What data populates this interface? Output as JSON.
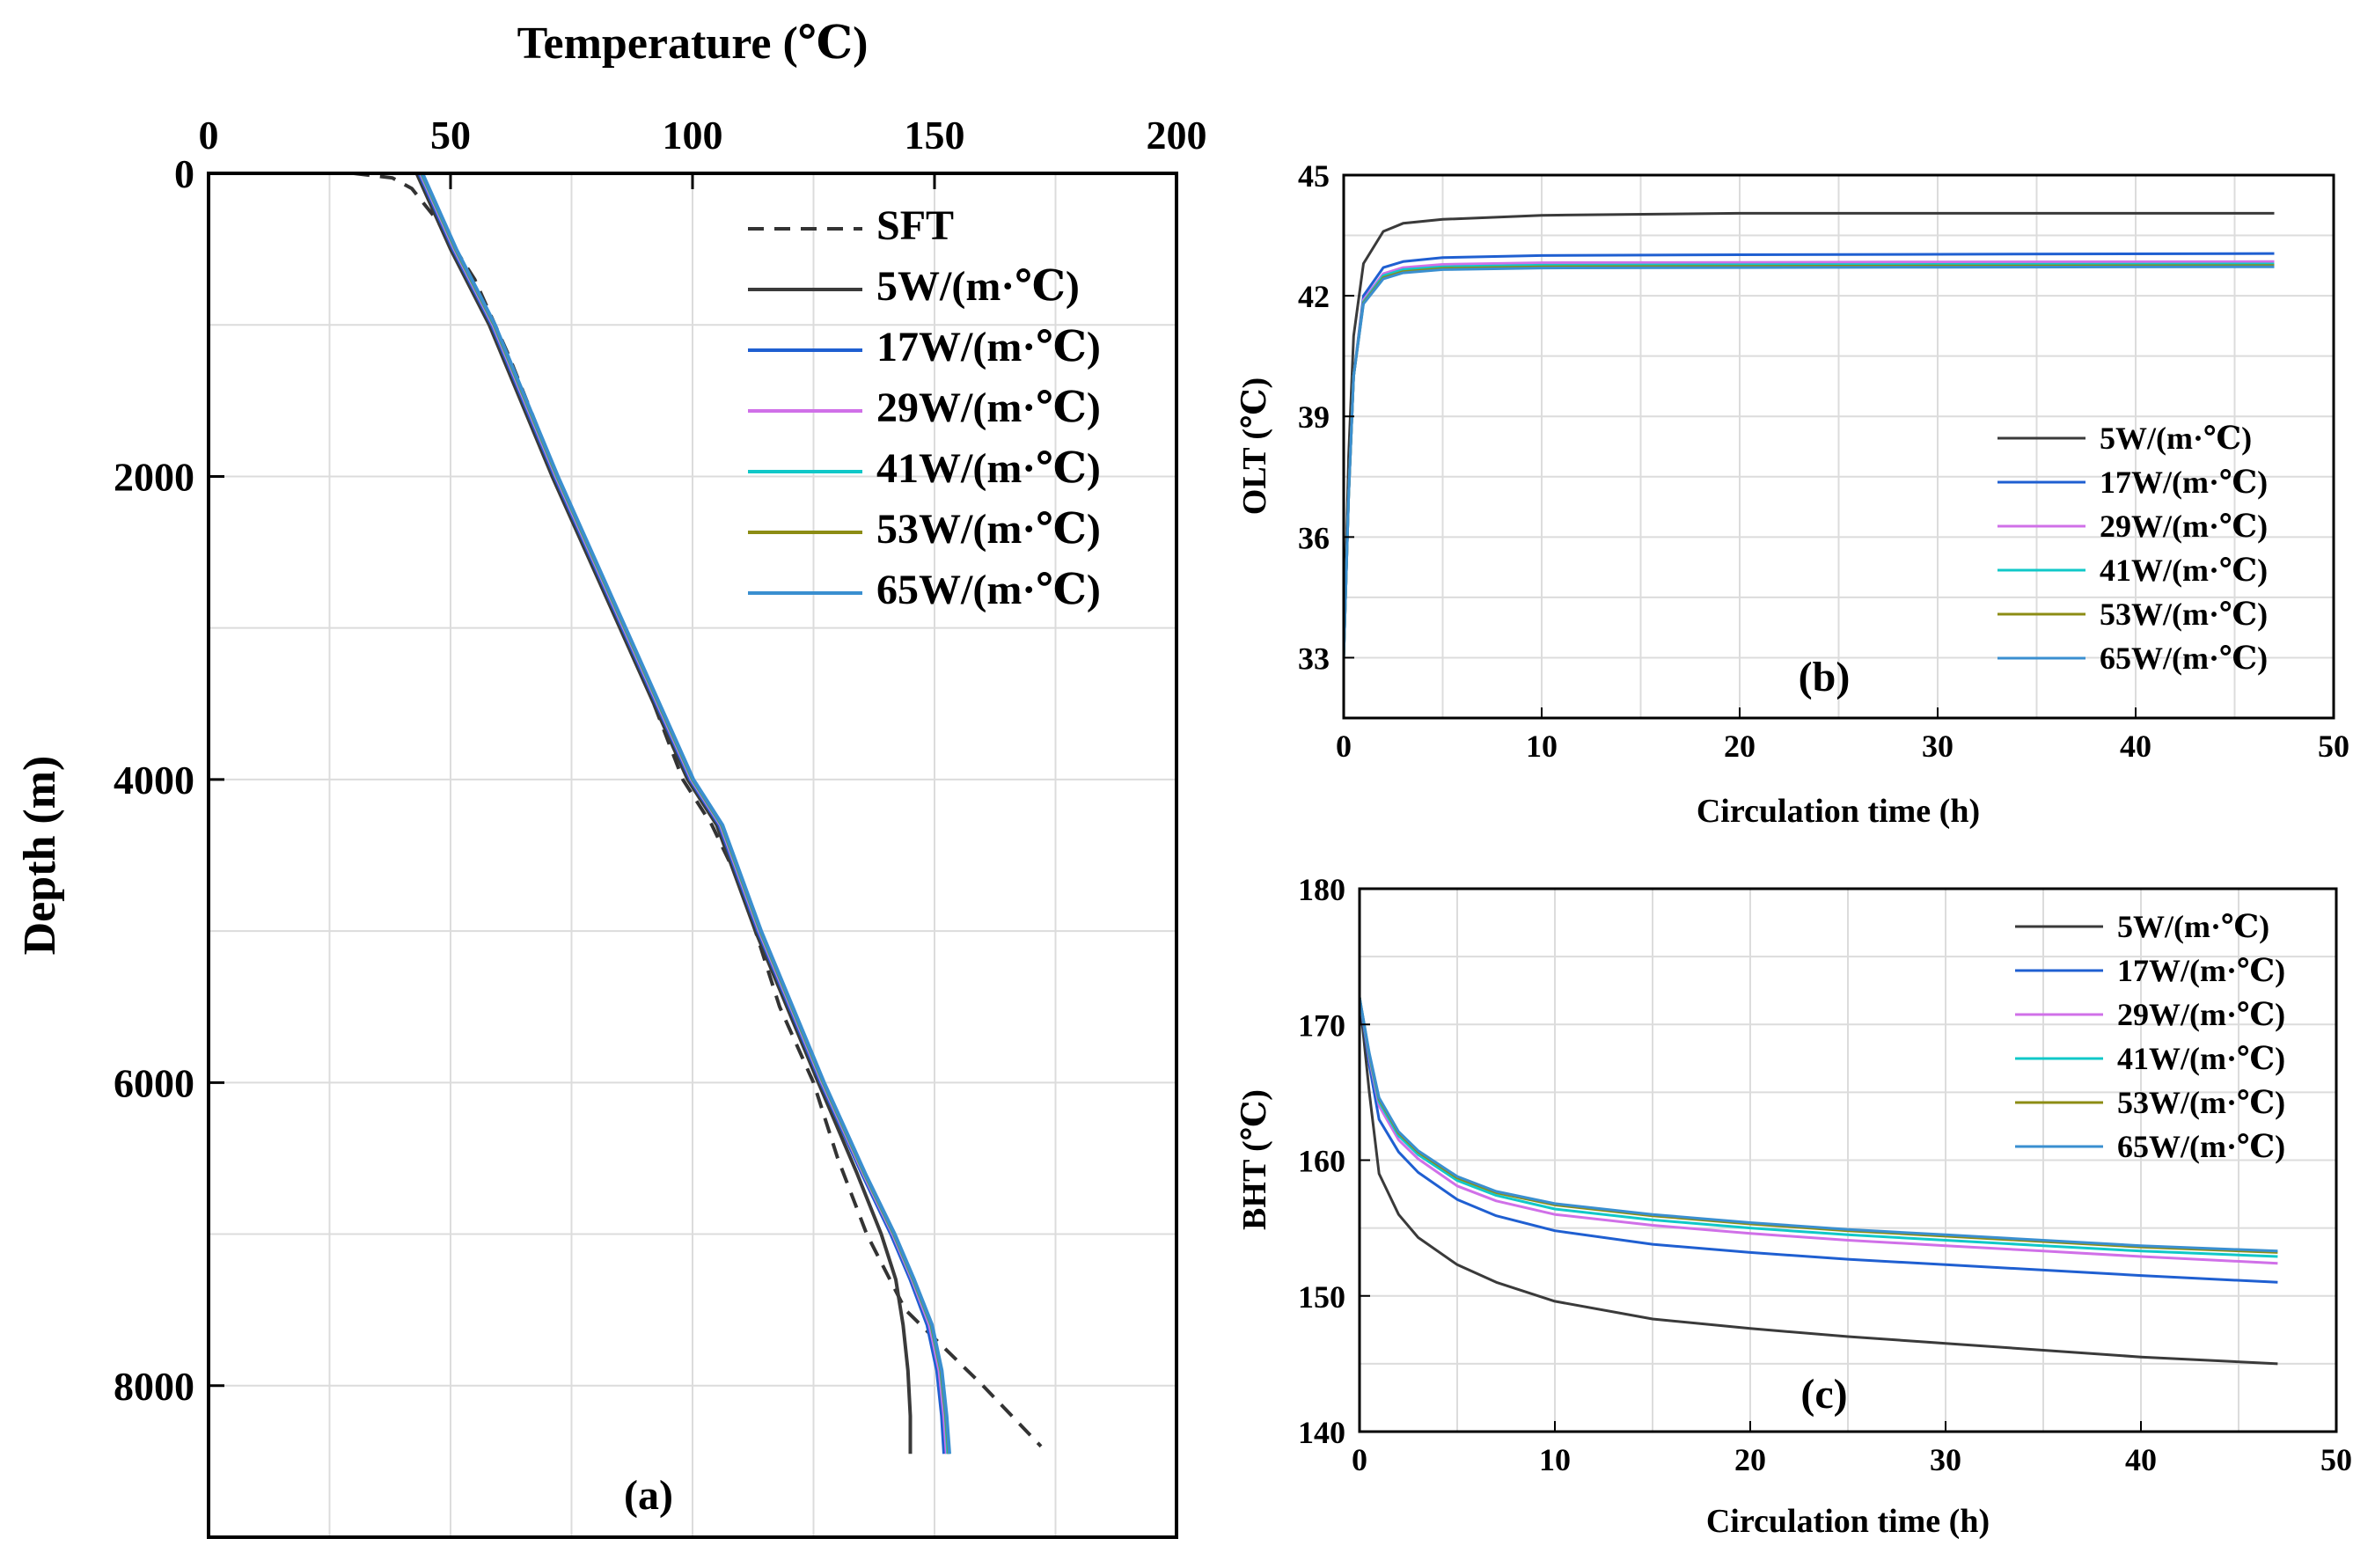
{
  "colors": {
    "SFT": "#333333",
    "k5": "#3a3a3a",
    "k17": "#1f5fd1",
    "k29": "#d070e8",
    "k41": "#10c8c8",
    "k53": "#8c8c14",
    "k65": "#3a8fd0",
    "grid": "#dcdcdc"
  },
  "chart_data": [
    {
      "panel": "(a)",
      "type": "line",
      "xlabel": "Temperature (℃)",
      "ylabel": "Depth (m)",
      "xlim": [
        0,
        200
      ],
      "ylim": [
        9000,
        0
      ],
      "xticks": [
        "0",
        "50",
        "100",
        "150",
        "200"
      ],
      "yticks": [
        "0",
        "2000",
        "4000",
        "6000",
        "8000"
      ],
      "series": [
        {
          "name": "SFT",
          "key": "SFT",
          "dashed": true,
          "y": [
            0,
            30,
            100,
            300,
            700,
            1200,
            2000,
            3000,
            4000,
            4300,
            4700,
            5500,
            6000,
            6500,
            7000,
            7500,
            8000,
            8400
          ],
          "x": [
            30,
            38,
            42,
            47,
            55,
            62,
            72,
            86,
            98,
            104,
            110,
            118,
            125,
            130,
            136,
            144,
            160,
            172
          ]
        },
        {
          "name": "5W/(m·℃)",
          "key": "k5",
          "dashed": false,
          "y": [
            0,
            500,
            1000,
            2000,
            3000,
            4000,
            4300,
            5000,
            6000,
            6600,
            7000,
            7300,
            7600,
            7900,
            8200,
            8450
          ],
          "x": [
            43,
            50,
            58,
            71,
            85,
            99,
            105,
            113,
            126,
            134,
            139,
            142,
            143.5,
            144.5,
            145,
            145
          ]
        },
        {
          "name": "17W/(m·℃)",
          "key": "k17",
          "dashed": false,
          "y": [
            0,
            500,
            1000,
            2000,
            3000,
            4000,
            4300,
            5000,
            6000,
            6600,
            7000,
            7300,
            7600,
            7900,
            8200,
            8450
          ],
          "x": [
            43.5,
            50.5,
            58.5,
            71.5,
            85.5,
            99.5,
            105.5,
            113.5,
            126.5,
            135,
            141,
            145,
            148.5,
            150.5,
            151.5,
            152
          ]
        },
        {
          "name": "29W/(m·℃)",
          "key": "k29",
          "dashed": false,
          "y": [
            0,
            500,
            1000,
            2000,
            3000,
            4000,
            4300,
            5000,
            6000,
            6600,
            7000,
            7300,
            7600,
            7900,
            8200,
            8450
          ],
          "x": [
            43.8,
            50.8,
            58.8,
            71.8,
            85.8,
            99.8,
            105.8,
            113.8,
            126.8,
            135.3,
            141.4,
            145.4,
            149,
            151,
            152,
            152.5
          ]
        },
        {
          "name": "41W/(m·℃)",
          "key": "k41",
          "dashed": false,
          "y": [
            0,
            500,
            1000,
            2000,
            3000,
            4000,
            4300,
            5000,
            6000,
            6600,
            7000,
            7300,
            7600,
            7900,
            8200,
            8450
          ],
          "x": [
            44,
            51,
            59,
            72,
            86,
            100,
            106,
            114,
            127,
            135.5,
            141.6,
            145.6,
            149.3,
            151.3,
            152.3,
            152.8
          ]
        },
        {
          "name": "53W/(m·℃)",
          "key": "k53",
          "dashed": false,
          "y": [
            0,
            500,
            1000,
            2000,
            3000,
            4000,
            4300,
            5000,
            6000,
            6600,
            7000,
            7300,
            7600,
            7900,
            8200,
            8450
          ],
          "x": [
            44.1,
            51.1,
            59.1,
            72.1,
            86.1,
            100.1,
            106.1,
            114.1,
            127.1,
            135.6,
            141.7,
            145.7,
            149.4,
            151.4,
            152.4,
            153
          ]
        },
        {
          "name": "65W/(m·℃)",
          "key": "k65",
          "dashed": false,
          "y": [
            0,
            500,
            1000,
            2000,
            3000,
            4000,
            4300,
            5000,
            6000,
            6600,
            7000,
            7300,
            7600,
            7900,
            8200,
            8450
          ],
          "x": [
            44.2,
            51.2,
            59.2,
            72.2,
            86.2,
            100.2,
            106.2,
            114.2,
            127.2,
            135.7,
            141.8,
            145.8,
            149.5,
            151.5,
            152.5,
            153.1
          ]
        }
      ]
    },
    {
      "panel": "(b)",
      "type": "line",
      "xlabel": "Circulation time (h)",
      "ylabel": "OLT (℃)",
      "xlim": [
        0,
        50
      ],
      "ylim": [
        31.5,
        45
      ],
      "xticks": [
        "0",
        "10",
        "20",
        "30",
        "40",
        "50"
      ],
      "yticks": [
        "33",
        "36",
        "39",
        "42",
        "45"
      ],
      "series": [
        {
          "name": "5W/(m·℃)",
          "key": "k5",
          "x": [
            0,
            0.25,
            0.5,
            1,
            2,
            3,
            5,
            10,
            20,
            30,
            47
          ],
          "y": [
            33,
            38,
            41,
            42.8,
            43.6,
            43.8,
            43.9,
            44.0,
            44.05,
            44.05,
            44.05
          ]
        },
        {
          "name": "17W/(m·℃)",
          "key": "k17",
          "x": [
            0,
            0.25,
            0.5,
            1,
            2,
            3,
            5,
            10,
            20,
            30,
            47
          ],
          "y": [
            33,
            37,
            40,
            42.0,
            42.7,
            42.85,
            42.95,
            43.0,
            43.02,
            43.03,
            43.05
          ]
        },
        {
          "name": "29W/(m·℃)",
          "key": "k29",
          "x": [
            0,
            0.25,
            0.5,
            1,
            2,
            3,
            5,
            10,
            20,
            30,
            47
          ],
          "y": [
            33,
            37,
            40,
            41.9,
            42.55,
            42.7,
            42.78,
            42.82,
            42.83,
            42.84,
            42.85
          ]
        },
        {
          "name": "41W/(m·℃)",
          "key": "k41",
          "x": [
            0,
            0.25,
            0.5,
            1,
            2,
            3,
            5,
            10,
            20,
            30,
            47
          ],
          "y": [
            33,
            37,
            40,
            41.85,
            42.5,
            42.65,
            42.72,
            42.76,
            42.77,
            42.78,
            42.79
          ]
        },
        {
          "name": "53W/(m·℃)",
          "key": "k53",
          "x": [
            0,
            0.25,
            0.5,
            1,
            2,
            3,
            5,
            10,
            20,
            30,
            47
          ],
          "y": [
            33,
            37,
            40,
            41.82,
            42.45,
            42.6,
            42.68,
            42.72,
            42.73,
            42.74,
            42.75
          ]
        },
        {
          "name": "65W/(m·℃)",
          "key": "k65",
          "x": [
            0,
            0.25,
            0.5,
            1,
            2,
            3,
            5,
            10,
            20,
            30,
            47
          ],
          "y": [
            33,
            37,
            40,
            41.8,
            42.42,
            42.57,
            42.65,
            42.69,
            42.7,
            42.71,
            42.72
          ]
        }
      ]
    },
    {
      "panel": "(c)",
      "type": "line",
      "xlabel": "Circulation time (h)",
      "ylabel": "BHT (℃)",
      "xlim": [
        0,
        50
      ],
      "ylim": [
        140,
        180
      ],
      "xticks": [
        "0",
        "10",
        "20",
        "30",
        "40",
        "50"
      ],
      "yticks": [
        "140",
        "150",
        "160",
        "170",
        "180"
      ],
      "series": [
        {
          "name": "5W/(m·℃)",
          "key": "k5",
          "x": [
            0,
            0.5,
            1,
            2,
            3,
            5,
            7,
            10,
            15,
            20,
            25,
            30,
            35,
            40,
            47
          ],
          "y": [
            172,
            165,
            159,
            156,
            154.3,
            152.3,
            151,
            149.6,
            148.3,
            147.6,
            147.0,
            146.5,
            146.0,
            145.5,
            145.0
          ]
        },
        {
          "name": "17W/(m·℃)",
          "key": "k17",
          "x": [
            0,
            0.5,
            1,
            2,
            3,
            5,
            7,
            10,
            15,
            20,
            25,
            30,
            35,
            40,
            47
          ],
          "y": [
            172,
            167,
            163,
            160.6,
            159.1,
            157.1,
            155.9,
            154.8,
            153.8,
            153.2,
            152.7,
            152.3,
            151.9,
            151.5,
            151.0
          ]
        },
        {
          "name": "29W/(m·℃)",
          "key": "k29",
          "x": [
            0,
            0.5,
            1,
            2,
            3,
            5,
            7,
            10,
            15,
            20,
            25,
            30,
            35,
            40,
            47
          ],
          "y": [
            172,
            167.5,
            164,
            161.5,
            160.1,
            158.1,
            157.0,
            156.0,
            155.2,
            154.6,
            154.1,
            153.7,
            153.3,
            152.9,
            152.4
          ]
        },
        {
          "name": "41W/(m·℃)",
          "key": "k41",
          "x": [
            0,
            0.5,
            1,
            2,
            3,
            5,
            7,
            10,
            15,
            20,
            25,
            30,
            35,
            40,
            47
          ],
          "y": [
            172,
            167.7,
            164.3,
            161.8,
            160.4,
            158.5,
            157.4,
            156.4,
            155.6,
            155.0,
            154.5,
            154.1,
            153.7,
            153.3,
            152.9
          ]
        },
        {
          "name": "53W/(m·℃)",
          "key": "k53",
          "x": [
            0,
            0.5,
            1,
            2,
            3,
            5,
            7,
            10,
            15,
            20,
            25,
            30,
            35,
            40,
            47
          ],
          "y": [
            172,
            167.8,
            164.5,
            162.0,
            160.6,
            158.7,
            157.6,
            156.7,
            155.9,
            155.3,
            154.8,
            154.4,
            154.0,
            153.6,
            153.2
          ]
        },
        {
          "name": "65W/(m·℃)",
          "key": "k65",
          "x": [
            0,
            0.5,
            1,
            2,
            3,
            5,
            7,
            10,
            15,
            20,
            25,
            30,
            35,
            40,
            47
          ],
          "y": [
            172,
            167.9,
            164.6,
            162.1,
            160.7,
            158.8,
            157.7,
            156.8,
            156.0,
            155.4,
            154.9,
            154.5,
            154.1,
            153.7,
            153.3
          ]
        }
      ]
    }
  ]
}
